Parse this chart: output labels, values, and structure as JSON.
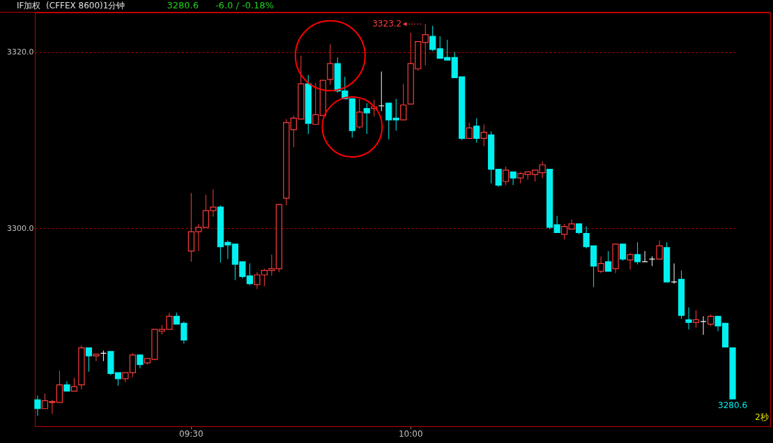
{
  "chart_data": {
    "type": "candlestick",
    "title": "IF加权  (CFFEX 8600)1分钟",
    "categories": [
      null,
      null,
      null,
      null,
      null,
      null,
      null,
      null,
      null,
      null,
      null,
      null,
      null,
      null,
      null,
      null,
      null,
      null,
      null,
      null,
      null,
      "09:30",
      null,
      null,
      null,
      null,
      null,
      null,
      null,
      null,
      null,
      null,
      null,
      null,
      null,
      null,
      null,
      null,
      null,
      null,
      null,
      null,
      null,
      null,
      null,
      null,
      null,
      null,
      null,
      null,
      null,
      "10:00",
      null,
      null,
      null,
      null,
      null,
      null,
      null,
      null,
      null,
      null,
      null,
      null,
      null,
      null,
      null,
      null,
      null,
      null,
      null,
      null,
      null,
      null,
      null,
      null,
      null,
      null,
      null,
      null,
      null,
      null,
      null,
      null,
      null,
      null,
      null,
      null,
      null,
      null,
      null,
      null,
      null,
      null,
      null,
      null
    ],
    "ohlc": [
      [
        3280.5,
        3281.0,
        3278.7,
        3279.5
      ],
      [
        3279.5,
        3281.2,
        3279.5,
        3280.4
      ],
      [
        3280.2,
        3280.5,
        3278.9,
        3280.3
      ],
      [
        3280.2,
        3283.8,
        3280.2,
        3282.2
      ],
      [
        3282.2,
        3282.6,
        3281.5,
        3281.5
      ],
      [
        3281.5,
        3283.0,
        3281.5,
        3282.0
      ],
      [
        3282.2,
        3286.7,
        3281.7,
        3286.4
      ],
      [
        3286.4,
        3286.4,
        3283.7,
        3285.5
      ],
      [
        3285.5,
        3285.7,
        3284.9,
        3285.7
      ],
      [
        3285.8,
        3286.1,
        3284.9,
        3285.8
      ],
      [
        3286.0,
        3286.0,
        3283.3,
        3283.5
      ],
      [
        3283.6,
        3283.6,
        3282.1,
        3282.9
      ],
      [
        3282.9,
        3283.6,
        3282.5,
        3283.6
      ],
      [
        3283.6,
        3285.8,
        3283.1,
        3285.6
      ],
      [
        3285.6,
        3285.6,
        3284.1,
        3284.5
      ],
      [
        3284.7,
        3285.2,
        3284.5,
        3285.2
      ],
      [
        3285.1,
        3288.5,
        3285.0,
        3288.5
      ],
      [
        3288.3,
        3289.0,
        3287.9,
        3288.5
      ],
      [
        3288.5,
        3290.4,
        3288.5,
        3290.0
      ],
      [
        3290.0,
        3290.4,
        3289.1,
        3289.1
      ],
      [
        3289.2,
        3289.4,
        3286.9,
        3287.3
      ],
      [
        3297.4,
        3304.0,
        3296.2,
        3299.6
      ],
      [
        3299.6,
        3300.5,
        3297.4,
        3300.1
      ],
      [
        3300.1,
        3303.8,
        3300.1,
        3302.0
      ],
      [
        3302.0,
        3304.4,
        3301.3,
        3302.4
      ],
      [
        3302.4,
        3302.6,
        3296.1,
        3297.9
      ],
      [
        3298.4,
        3298.6,
        3296.5,
        3298.1
      ],
      [
        3298.2,
        3298.2,
        3294.1,
        3295.9
      ],
      [
        3296.2,
        3296.2,
        3294.3,
        3294.5
      ],
      [
        3294.6,
        3296.0,
        3293.5,
        3293.7
      ],
      [
        3293.6,
        3295.0,
        3293.1,
        3294.7
      ],
      [
        3294.7,
        3295.4,
        3293.4,
        3295.2
      ],
      [
        3295.2,
        3297.0,
        3294.6,
        3295.4
      ],
      [
        3295.4,
        3302.7,
        3295.0,
        3302.7
      ],
      [
        3303.4,
        3312.4,
        3302.6,
        3312.0
      ],
      [
        3311.2,
        3312.8,
        3309.2,
        3312.5
      ],
      [
        3312.4,
        3319.6,
        3312.4,
        3316.4
      ],
      [
        3316.4,
        3317.4,
        3310.7,
        3311.9
      ],
      [
        3311.8,
        3316.5,
        3311.8,
        3312.9
      ],
      [
        3312.8,
        3316.8,
        3312.8,
        3316.8
      ],
      [
        3316.9,
        3320.9,
        3316.3,
        3318.7
      ],
      [
        3318.7,
        3319.4,
        3315.4,
        3315.6
      ],
      [
        3315.6,
        3317.2,
        3314.7,
        3314.7
      ],
      [
        3314.7,
        3314.7,
        3310.3,
        3311.1
      ],
      [
        3311.5,
        3314.7,
        3311.3,
        3313.2
      ],
      [
        3313.6,
        3314.2,
        3310.7,
        3313.1
      ],
      [
        3313.6,
        3314.6,
        3312.7,
        3313.8
      ],
      [
        3313.9,
        3317.8,
        3313.3,
        3313.9
      ],
      [
        3314.2,
        3314.2,
        3310.1,
        3312.3
      ],
      [
        3312.5,
        3314.7,
        3311.1,
        3312.3
      ],
      [
        3312.3,
        3316.4,
        3312.3,
        3314.0
      ],
      [
        3314.1,
        3322.2,
        3314.1,
        3318.7
      ],
      [
        3318.1,
        3321.2,
        3317.9,
        3321.2
      ],
      [
        3321.1,
        3323.2,
        3318.5,
        3322.0
      ],
      [
        3321.8,
        3323.0,
        3320.1,
        3320.3
      ],
      [
        3320.4,
        3321.8,
        3319.3,
        3319.3
      ],
      [
        3319.4,
        3321.4,
        3319.1,
        3319.1
      ],
      [
        3319.4,
        3320.0,
        3317.1,
        3317.1
      ],
      [
        3317.2,
        3317.2,
        3310.0,
        3310.2
      ],
      [
        3310.2,
        3312.0,
        3310.2,
        3311.4
      ],
      [
        3311.6,
        3312.5,
        3309.7,
        3310.2
      ],
      [
        3310.2,
        3311.8,
        3309.3,
        3310.9
      ],
      [
        3310.6,
        3311.0,
        3305.1,
        3306.7
      ],
      [
        3306.7,
        3306.7,
        3304.7,
        3304.9
      ],
      [
        3305.3,
        3307.0,
        3304.9,
        3306.6
      ],
      [
        3306.4,
        3306.4,
        3304.9,
        3305.7
      ],
      [
        3305.7,
        3306.4,
        3305.1,
        3306.2
      ],
      [
        3306.1,
        3306.4,
        3305.5,
        3306.4
      ],
      [
        3306.1,
        3306.6,
        3305.3,
        3306.6
      ],
      [
        3306.3,
        3307.6,
        3305.7,
        3307.2
      ],
      [
        3306.7,
        3306.7,
        3299.9,
        3300.1
      ],
      [
        3300.4,
        3301.4,
        3299.5,
        3299.5
      ],
      [
        3299.3,
        3300.5,
        3298.7,
        3300.2
      ],
      [
        3299.9,
        3301.0,
        3299.9,
        3300.5
      ],
      [
        3300.5,
        3300.5,
        3299.3,
        3299.5
      ],
      [
        3299.4,
        3300.2,
        3297.7,
        3297.9
      ],
      [
        3298.0,
        3298.0,
        3293.3,
        3295.7
      ],
      [
        3295.1,
        3296.8,
        3294.9,
        3296.0
      ],
      [
        3296.2,
        3297.4,
        3295.1,
        3295.1
      ],
      [
        3295.4,
        3298.2,
        3294.9,
        3298.2
      ],
      [
        3298.2,
        3298.2,
        3296.3,
        3296.5
      ],
      [
        3296.4,
        3297.2,
        3295.3,
        3297.0
      ],
      [
        3297.0,
        3298.4,
        3295.9,
        3296.2
      ],
      [
        3296.2,
        3297.4,
        3296.2,
        3296.2
      ],
      [
        3296.5,
        3296.8,
        3295.7,
        3296.5
      ],
      [
        3296.5,
        3298.6,
        3296.5,
        3298.0
      ],
      [
        3297.8,
        3298.4,
        3293.9,
        3293.9
      ],
      [
        3293.9,
        3296.0,
        3293.7,
        3293.9
      ],
      [
        3294.2,
        3295.2,
        3289.7,
        3290.1
      ],
      [
        3289.6,
        3291.0,
        3288.5,
        3289.3
      ],
      [
        3289.3,
        3290.7,
        3288.7,
        3289.6
      ],
      [
        3289.4,
        3290.0,
        3287.9,
        3289.4
      ],
      [
        3289.1,
        3290.2,
        3288.9,
        3290.0
      ],
      [
        3290.0,
        3290.0,
        3288.3,
        3288.9
      ],
      [
        3289.2,
        3289.2,
        3286.5,
        3286.5
      ],
      [
        3286.4,
        3286.4,
        3280.6,
        3280.6
      ]
    ],
    "colors": [
      "#00f0f0",
      "#ff3c3c",
      "#ff3c3c",
      "#ff3c3c",
      "#00f0f0",
      "#ff3c3c",
      "#ff3c3c",
      "#00f0f0",
      "#ff3c3c",
      "#ffffff",
      "#00f0f0",
      "#00f0f0",
      "#ff3c3c",
      "#ff3c3c",
      "#00f0f0",
      "#ff3c3c",
      "#ff3c3c",
      "#ff3c3c",
      "#ff3c3c",
      "#00f0f0",
      "#00f0f0",
      "#ff3c3c",
      "#ff3c3c",
      "#ff3c3c",
      "#ff3c3c",
      "#00f0f0",
      "#00f0f0",
      "#00f0f0",
      "#00f0f0",
      "#00f0f0",
      "#ff3c3c",
      "#ff3c3c",
      "#ff3c3c",
      "#ff3c3c",
      "#ff3c3c",
      "#ff3c3c",
      "#ff3c3c",
      "#00f0f0",
      "#ff3c3c",
      "#ff3c3c",
      "#ff3c3c",
      "#00f0f0",
      "#00f0f0",
      "#00f0f0",
      "#ff3c3c",
      "#00f0f0",
      "#ff3c3c",
      "#ffffff",
      "#00f0f0",
      "#00f0f0",
      "#ff3c3c",
      "#ff3c3c",
      "#ff3c3c",
      "#ff3c3c",
      "#00f0f0",
      "#00f0f0",
      "#00f0f0",
      "#00f0f0",
      "#00f0f0",
      "#ff3c3c",
      "#00f0f0",
      "#ff3c3c",
      "#00f0f0",
      "#00f0f0",
      "#ff3c3c",
      "#00f0f0",
      "#ff3c3c",
      "#ff3c3c",
      "#ff3c3c",
      "#ff3c3c",
      "#00f0f0",
      "#00f0f0",
      "#ff3c3c",
      "#ff3c3c",
      "#00f0f0",
      "#00f0f0",
      "#00f0f0",
      "#ff3c3c",
      "#00f0f0",
      "#ff3c3c",
      "#00f0f0",
      "#ff3c3c",
      "#00f0f0",
      "#ffffff",
      "#ffffff",
      "#ff3c3c",
      "#00f0f0",
      "#ffffff",
      "#00f0f0",
      "#00f0f0",
      "#ff3c3c",
      "#ffffff",
      "#ff3c3c",
      "#00f0f0",
      "#00f0f0",
      "#00f0f0"
    ],
    "ylim": [
      3277.5,
      3324.5
    ],
    "yticks": [
      {
        "value": 3300,
        "label": "3300.0"
      },
      {
        "value": 3320,
        "label": "3320.0"
      }
    ],
    "grid": "y",
    "annotations": [
      "3280.6",
      "-6.0 / -0.18%",
      "3323.2",
      "3280.6",
      "2秒"
    ]
  }
}
